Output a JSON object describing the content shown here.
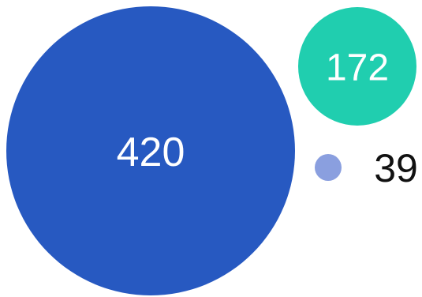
{
  "chart_data": {
    "type": "bubble",
    "title": "",
    "legend": "none",
    "grid": false,
    "points": [
      {
        "label": "420",
        "value": 420,
        "color": "#2759c1",
        "label_color": "#ffffff",
        "label_position": "inside"
      },
      {
        "label": "172",
        "value": 172,
        "color": "#20ceaf",
        "label_color": "#ffffff",
        "label_position": "inside"
      },
      {
        "label": "39",
        "value": 39,
        "color": "#8a9fdf",
        "label_color": "#111111",
        "label_position": "outside"
      }
    ]
  }
}
